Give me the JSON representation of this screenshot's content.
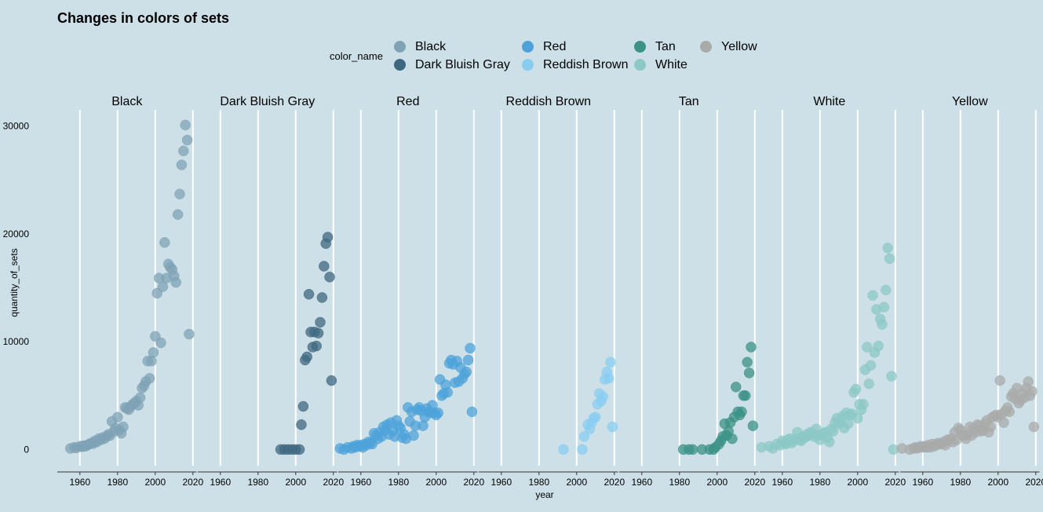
{
  "chart_data": {
    "type": "scatter",
    "title": "Changes in colors of sets",
    "xlabel": "year",
    "ylabel": "quantity_of_sets",
    "xlim": [
      1948,
      2022
    ],
    "ylim": [
      -1500,
      31500
    ],
    "x_ticks": [
      1960,
      1980,
      2000,
      2020
    ],
    "y_ticks": [
      0,
      10000,
      20000,
      30000
    ],
    "legend_title": "color_name",
    "legend_position": "top",
    "grid": "vertical major lines",
    "series": [
      {
        "name": "Black",
        "color": "#7fa3b5",
        "x": [
          1955,
          1957,
          1958,
          1960,
          1961,
          1962,
          1963,
          1964,
          1965,
          1966,
          1967,
          1968,
          1969,
          1970,
          1971,
          1972,
          1973,
          1974,
          1975,
          1976,
          1977,
          1978,
          1979,
          1980,
          1981,
          1982,
          1983,
          1984,
          1985,
          1986,
          1987,
          1988,
          1989,
          1990,
          1991,
          1992,
          1993,
          1994,
          1995,
          1996,
          1997,
          1998,
          1999,
          2000,
          2001,
          2002,
          2003,
          2004,
          2005,
          2006,
          2007,
          2008,
          2009,
          2010,
          2011,
          2012,
          2013,
          2014,
          2015,
          2016,
          2017,
          2018
        ],
        "y": [
          100,
          200,
          150,
          300,
          250,
          350,
          300,
          400,
          500,
          600,
          550,
          800,
          700,
          1000,
          900,
          1100,
          1000,
          1200,
          1400,
          1300,
          2600,
          1700,
          2000,
          3000,
          1800,
          1500,
          2100,
          3900,
          3800,
          3700,
          4000,
          4200,
          4300,
          4500,
          4100,
          4800,
          5700,
          5900,
          6300,
          8200,
          6600,
          8200,
          9000,
          10500,
          14500,
          15900,
          9900,
          15100,
          19200,
          15900,
          17200,
          16900,
          16700,
          16100,
          15500,
          21800,
          23700,
          26400,
          27700,
          30100,
          28700,
          10700
        ]
      },
      {
        "name": "Dark Bluish Gray",
        "color": "#3f6880",
        "x": [
          1992,
          1994,
          1996,
          1998,
          2000,
          2002,
          2003,
          2004,
          2005,
          2006,
          2007,
          2008,
          2009,
          2010,
          2011,
          2012,
          2013,
          2014,
          2015,
          2016,
          2017,
          2018,
          2019
        ],
        "y": [
          0,
          0,
          0,
          0,
          0,
          0,
          2300,
          4000,
          8300,
          8600,
          14400,
          10900,
          9500,
          10900,
          9600,
          10800,
          11800,
          14100,
          17000,
          19100,
          19700,
          16000,
          6400
        ]
      },
      {
        "name": "Red",
        "color": "#4da3d9",
        "x": [
          1949,
          1951,
          1953,
          1955,
          1956,
          1957,
          1958,
          1959,
          1960,
          1961,
          1962,
          1963,
          1964,
          1965,
          1966,
          1967,
          1968,
          1969,
          1970,
          1971,
          1972,
          1973,
          1974,
          1975,
          1976,
          1977,
          1978,
          1979,
          1980,
          1981,
          1982,
          1983,
          1984,
          1985,
          1986,
          1987,
          1988,
          1989,
          1990,
          1991,
          1992,
          1993,
          1994,
          1995,
          1996,
          1997,
          1998,
          1999,
          2000,
          2001,
          2002,
          2003,
          2004,
          2005,
          2006,
          2007,
          2008,
          2009,
          2010,
          2011,
          2012,
          2013,
          2014,
          2015,
          2016,
          2017,
          2018,
          2019
        ],
        "y": [
          100,
          0,
          200,
          100,
          300,
          200,
          400,
          300,
          400,
          200,
          500,
          400,
          700,
          600,
          500,
          1500,
          1300,
          1000,
          1600,
          1200,
          2100,
          1800,
          2300,
          1400,
          2500,
          1700,
          1200,
          2700,
          2200,
          2000,
          1100,
          1400,
          1000,
          3900,
          2600,
          3500,
          1300,
          2200,
          3700,
          3900,
          3600,
          2200,
          3000,
          3800,
          3500,
          3400,
          4100,
          3400,
          3200,
          3400,
          6500,
          5000,
          5200,
          6000,
          5300,
          8000,
          8300,
          7900,
          6200,
          8200,
          6300,
          7600,
          6600,
          7000,
          7200,
          8300,
          9400,
          3500
        ]
      },
      {
        "name": "Reddish Brown",
        "color": "#88cdf1",
        "x": [
          1993,
          2003,
          2004,
          2006,
          2007,
          2008,
          2009,
          2010,
          2011,
          2012,
          2013,
          2014,
          2015,
          2016,
          2017,
          2018,
          2019
        ],
        "y": [
          0,
          0,
          1200,
          2300,
          1900,
          2500,
          2900,
          3000,
          4200,
          5200,
          4500,
          4900,
          6500,
          7200,
          6600,
          8100,
          2100
        ]
      },
      {
        "name": "Tan",
        "color": "#3b9285",
        "x": [
          1982,
          1985,
          1987,
          1992,
          1996,
          1998,
          1999,
          2001,
          2002,
          2003,
          2004,
          2005,
          2006,
          2007,
          2008,
          2009,
          2010,
          2011,
          2012,
          2013,
          2014,
          2015,
          2016,
          2017,
          2018,
          2019
        ],
        "y": [
          0,
          0,
          0,
          0,
          0,
          0,
          200,
          500,
          800,
          1200,
          2400,
          1300,
          1700,
          2500,
          1000,
          3000,
          5800,
          3500,
          3200,
          3500,
          5000,
          5000,
          8100,
          7100,
          9500,
          2200
        ]
      },
      {
        "name": "White",
        "color": "#8cc8c6",
        "x": [
          1949,
          1953,
          1955,
          1957,
          1959,
          1960,
          1961,
          1962,
          1963,
          1964,
          1965,
          1966,
          1967,
          1968,
          1969,
          1970,
          1971,
          1972,
          1973,
          1974,
          1975,
          1976,
          1977,
          1978,
          1979,
          1980,
          1981,
          1982,
          1983,
          1984,
          1985,
          1986,
          1987,
          1988,
          1989,
          1990,
          1991,
          1992,
          1993,
          1994,
          1995,
          1996,
          1997,
          1998,
          1999,
          2000,
          2001,
          2002,
          2003,
          2004,
          2005,
          2006,
          2007,
          2008,
          2009,
          2010,
          2011,
          2012,
          2013,
          2014,
          2015,
          2016,
          2017,
          2018,
          2019
        ],
        "y": [
          200,
          300,
          100,
          500,
          400,
          800,
          600,
          500,
          900,
          1000,
          600,
          800,
          1000,
          1600,
          900,
          800,
          1200,
          1100,
          1400,
          1300,
          1600,
          1500,
          1200,
          1900,
          1300,
          900,
          1400,
          1500,
          1600,
          1100,
          700,
          1900,
          1700,
          2500,
          2900,
          2400,
          2700,
          3100,
          2000,
          3400,
          2400,
          3200,
          3300,
          5300,
          5600,
          2900,
          4200,
          3700,
          4200,
          7400,
          9500,
          6100,
          7800,
          14300,
          9000,
          13000,
          9600,
          12100,
          11600,
          13200,
          14800,
          18700,
          17700,
          6800,
          0
        ]
      },
      {
        "name": "Yellow",
        "color": "#a8abaa",
        "x": [
          1949,
          1953,
          1955,
          1956,
          1957,
          1958,
          1959,
          1960,
          1961,
          1962,
          1963,
          1964,
          1965,
          1966,
          1967,
          1968,
          1969,
          1970,
          1971,
          1972,
          1973,
          1974,
          1975,
          1976,
          1977,
          1978,
          1979,
          1980,
          1981,
          1982,
          1983,
          1984,
          1985,
          1986,
          1987,
          1988,
          1989,
          1990,
          1991,
          1992,
          1993,
          1994,
          1995,
          1996,
          1997,
          1998,
          1999,
          2000,
          2001,
          2002,
          2003,
          2004,
          2005,
          2006,
          2007,
          2008,
          2009,
          2010,
          2011,
          2012,
          2013,
          2014,
          2015,
          2016,
          2017,
          2018,
          2019
        ],
        "y": [
          100,
          0,
          100,
          200,
          100,
          200,
          300,
          200,
          300,
          200,
          400,
          200,
          500,
          300,
          400,
          600,
          500,
          500,
          700,
          400,
          900,
          800,
          1000,
          700,
          1600,
          900,
          2000,
          1800,
          1300,
          1300,
          1000,
          1400,
          2100,
          1300,
          2000,
          1600,
          2300,
          2200,
          1700,
          1800,
          2400,
          2700,
          1600,
          2100,
          3000,
          3100,
          3200,
          3000,
          6400,
          3300,
          2500,
          3600,
          3900,
          3500,
          4900,
          5200,
          4700,
          5700,
          4300,
          4600,
          5200,
          4800,
          5700,
          6300,
          5000,
          5400,
          2100
        ]
      }
    ]
  }
}
